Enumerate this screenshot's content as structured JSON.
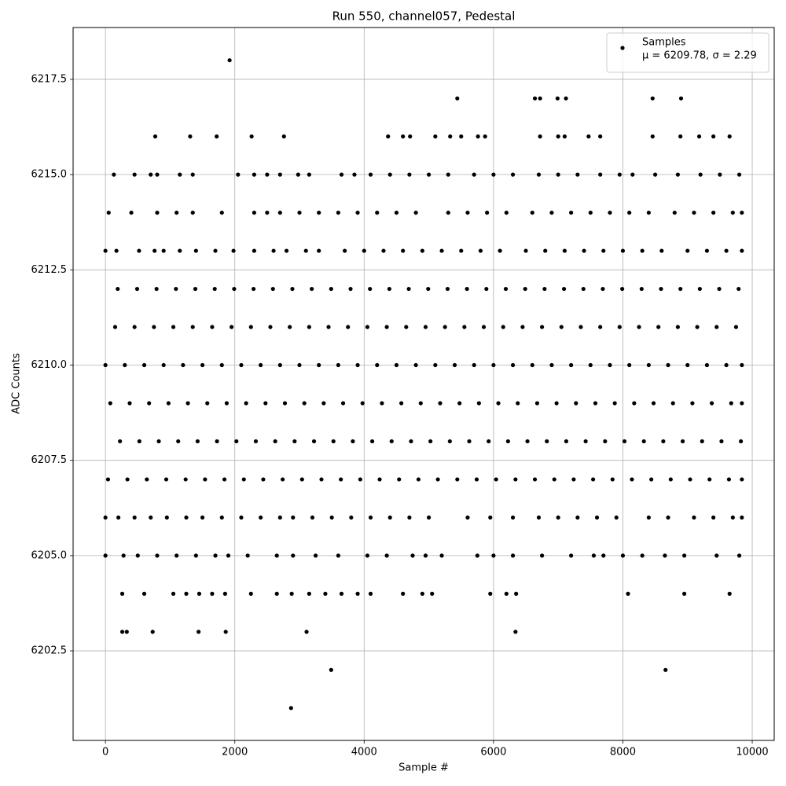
{
  "chart_data": {
    "type": "scatter",
    "title": "Run 550, channel057, Pedestal",
    "x_label": "Sample #",
    "y_label": "ADC Counts",
    "legend_note": "μ = 6209.78, σ = 2.29",
    "legend_position": "upper right",
    "grid": true,
    "xlim": [
      -500,
      10340
    ],
    "ylim": [
      6200.15,
      6218.86
    ],
    "xticks": [
      0,
      2000,
      4000,
      6000,
      8000,
      10000
    ],
    "yticks": [
      6202.5,
      {
        "value": 6205,
        "label": "6205.0"
      },
      6207.5,
      {
        "value": 6210,
        "label": "6210.0"
      },
      6212.5,
      {
        "value": 6215,
        "label": "6215.0"
      },
      6217.5
    ],
    "series": [
      {
        "name": "Samples",
        "color": "#000000",
        "x": [
          0,
          300,
          600,
          900,
          1200,
          1500,
          1800,
          2100,
          2400,
          2700,
          3000,
          3300,
          3600,
          3900,
          4200,
          4500,
          4800,
          5100,
          5400,
          5700,
          6000,
          6300,
          6600,
          6900,
          7200,
          7500,
          7800,
          8100,
          8400,
          8700,
          9000,
          9300,
          9600,
          9840,
          150,
          450,
          750,
          1050,
          1350,
          1650,
          1950,
          2250,
          2550,
          2850,
          3150,
          3450,
          3750,
          4050,
          4350,
          4650,
          4950,
          5250,
          5550,
          5850,
          6150,
          6450,
          6750,
          7050,
          7350,
          7650,
          7950,
          8250,
          8550,
          8850,
          9150,
          9450,
          9750,
          75,
          375,
          675,
          975,
          1275,
          1575,
          1875,
          2175,
          2475,
          2775,
          3075,
          3375,
          3675,
          3975,
          4275,
          4575,
          4875,
          5175,
          5475,
          5775,
          6075,
          6375,
          6675,
          6975,
          7275,
          7575,
          7875,
          8175,
          8475,
          8775,
          9075,
          9375,
          9675,
          9840,
          225,
          525,
          825,
          1125,
          1425,
          1725,
          2025,
          2325,
          2625,
          2925,
          3225,
          3525,
          3825,
          4125,
          4425,
          4725,
          5025,
          5325,
          5625,
          5925,
          6225,
          6525,
          6825,
          7125,
          7425,
          7725,
          8025,
          8325,
          8625,
          8925,
          9225,
          9525,
          9825,
          40,
          340,
          640,
          940,
          1240,
          1540,
          1840,
          2140,
          2440,
          2740,
          3040,
          3340,
          3640,
          3940,
          4240,
          4540,
          4840,
          5140,
          5440,
          5740,
          6040,
          6340,
          6640,
          6940,
          7240,
          7540,
          7840,
          8140,
          8440,
          8740,
          9040,
          9340,
          9640,
          9840,
          190,
          490,
          790,
          1090,
          1390,
          1690,
          1990,
          2290,
          2590,
          2890,
          3190,
          3490,
          3790,
          4090,
          4390,
          4690,
          4990,
          5290,
          5590,
          5890,
          6190,
          6490,
          6790,
          7090,
          7390,
          7690,
          7990,
          8290,
          8590,
          8890,
          9190,
          9490,
          9790,
          0,
          170,
          520,
          760,
          900,
          1150,
          1400,
          1700,
          1980,
          2300,
          2600,
          2800,
          3100,
          3300,
          3700,
          4000,
          4300,
          4600,
          4900,
          5200,
          5500,
          5800,
          6100,
          6500,
          6800,
          7100,
          7400,
          7700,
          8000,
          8300,
          8600,
          9000,
          9300,
          9600,
          9840,
          50,
          400,
          800,
          1100,
          1350,
          1800,
          2300,
          2500,
          2700,
          3000,
          3300,
          3600,
          3900,
          4200,
          4500,
          4800,
          5300,
          5600,
          5900,
          6200,
          6600,
          6900,
          7200,
          7500,
          7800,
          8100,
          8400,
          8800,
          9100,
          9400,
          9700,
          9840,
          0,
          200,
          450,
          700,
          950,
          1250,
          1500,
          1800,
          2100,
          2400,
          2700,
          2900,
          3200,
          3500,
          3800,
          4100,
          4400,
          4700,
          5000,
          5600,
          5950,
          6300,
          6700,
          7000,
          7300,
          7600,
          7900,
          8400,
          8700,
          9100,
          9400,
          9700,
          9840,
          0,
          280,
          500,
          800,
          1100,
          1400,
          1700,
          1900,
          2200,
          2650,
          2900,
          3250,
          3600,
          4050,
          4350,
          4750,
          4950,
          5200,
          5750,
          6000,
          6300,
          6750,
          7200,
          7550,
          7700,
          8000,
          8300,
          8650,
          8950,
          9450,
          9800,
          130,
          450,
          700,
          800,
          1150,
          1350,
          2050,
          2300,
          2500,
          2700,
          2980,
          3150,
          3650,
          3850,
          4100,
          4400,
          4700,
          5000,
          5300,
          5700,
          6000,
          6300,
          6700,
          7000,
          7300,
          7650,
          7950,
          8150,
          8500,
          8850,
          9200,
          9500,
          9800,
          260,
          600,
          1050,
          1250,
          1450,
          1650,
          1850,
          2250,
          2650,
          2880,
          3150,
          3400,
          3650,
          3900,
          4100,
          4600,
          4900,
          5050,
          5950,
          6200,
          6350,
          8080,
          8950,
          9650,
          770,
          1310,
          1720,
          2260,
          2760,
          4370,
          4600,
          4710,
          5100,
          5330,
          5500,
          5760,
          5870,
          6720,
          7000,
          7100,
          7470,
          7650,
          8460,
          8890,
          9180,
          9400,
          9650,
          260,
          330,
          730,
          1440,
          1860,
          3110,
          6340,
          5440,
          6640,
          6720,
          6990,
          7120,
          8460,
          8900,
          1920,
          3490,
          8660,
          2870
        ],
        "values": [
          6210,
          6210,
          6210,
          6210,
          6210,
          6210,
          6210,
          6210,
          6210,
          6210,
          6210,
          6210,
          6210,
          6210,
          6210,
          6210,
          6210,
          6210,
          6210,
          6210,
          6210,
          6210,
          6210,
          6210,
          6210,
          6210,
          6210,
          6210,
          6210,
          6210,
          6210,
          6210,
          6210,
          6210,
          6211,
          6211,
          6211,
          6211,
          6211,
          6211,
          6211,
          6211,
          6211,
          6211,
          6211,
          6211,
          6211,
          6211,
          6211,
          6211,
          6211,
          6211,
          6211,
          6211,
          6211,
          6211,
          6211,
          6211,
          6211,
          6211,
          6211,
          6211,
          6211,
          6211,
          6211,
          6211,
          6211,
          6209,
          6209,
          6209,
          6209,
          6209,
          6209,
          6209,
          6209,
          6209,
          6209,
          6209,
          6209,
          6209,
          6209,
          6209,
          6209,
          6209,
          6209,
          6209,
          6209,
          6209,
          6209,
          6209,
          6209,
          6209,
          6209,
          6209,
          6209,
          6209,
          6209,
          6209,
          6209,
          6209,
          6209,
          6208,
          6208,
          6208,
          6208,
          6208,
          6208,
          6208,
          6208,
          6208,
          6208,
          6208,
          6208,
          6208,
          6208,
          6208,
          6208,
          6208,
          6208,
          6208,
          6208,
          6208,
          6208,
          6208,
          6208,
          6208,
          6208,
          6208,
          6208,
          6208,
          6208,
          6208,
          6208,
          6208,
          6207,
          6207,
          6207,
          6207,
          6207,
          6207,
          6207,
          6207,
          6207,
          6207,
          6207,
          6207,
          6207,
          6207,
          6207,
          6207,
          6207,
          6207,
          6207,
          6207,
          6207,
          6207,
          6207,
          6207,
          6207,
          6207,
          6207,
          6207,
          6207,
          6207,
          6207,
          6207,
          6207,
          6207,
          6212,
          6212,
          6212,
          6212,
          6212,
          6212,
          6212,
          6212,
          6212,
          6212,
          6212,
          6212,
          6212,
          6212,
          6212,
          6212,
          6212,
          6212,
          6212,
          6212,
          6212,
          6212,
          6212,
          6212,
          6212,
          6212,
          6212,
          6212,
          6212,
          6212,
          6212,
          6212,
          6212,
          6213,
          6213,
          6213,
          6213,
          6213,
          6213,
          6213,
          6213,
          6213,
          6213,
          6213,
          6213,
          6213,
          6213,
          6213,
          6213,
          6213,
          6213,
          6213,
          6213,
          6213,
          6213,
          6213,
          6213,
          6213,
          6213,
          6213,
          6213,
          6213,
          6213,
          6213,
          6213,
          6213,
          6213,
          6213,
          6214,
          6214,
          6214,
          6214,
          6214,
          6214,
          6214,
          6214,
          6214,
          6214,
          6214,
          6214,
          6214,
          6214,
          6214,
          6214,
          6214,
          6214,
          6214,
          6214,
          6214,
          6214,
          6214,
          6214,
          6214,
          6214,
          6214,
          6214,
          6214,
          6214,
          6214,
          6214,
          6206,
          6206,
          6206,
          6206,
          6206,
          6206,
          6206,
          6206,
          6206,
          6206,
          6206,
          6206,
          6206,
          6206,
          6206,
          6206,
          6206,
          6206,
          6206,
          6206,
          6206,
          6206,
          6206,
          6206,
          6206,
          6206,
          6206,
          6206,
          6206,
          6206,
          6206,
          6206,
          6206,
          6205,
          6205,
          6205,
          6205,
          6205,
          6205,
          6205,
          6205,
          6205,
          6205,
          6205,
          6205,
          6205,
          6205,
          6205,
          6205,
          6205,
          6205,
          6205,
          6205,
          6205,
          6205,
          6205,
          6205,
          6205,
          6205,
          6205,
          6205,
          6205,
          6205,
          6205,
          6215,
          6215,
          6215,
          6215,
          6215,
          6215,
          6215,
          6215,
          6215,
          6215,
          6215,
          6215,
          6215,
          6215,
          6215,
          6215,
          6215,
          6215,
          6215,
          6215,
          6215,
          6215,
          6215,
          6215,
          6215,
          6215,
          6215,
          6215,
          6215,
          6215,
          6215,
          6215,
          6215,
          6204,
          6204,
          6204,
          6204,
          6204,
          6204,
          6204,
          6204,
          6204,
          6204,
          6204,
          6204,
          6204,
          6204,
          6204,
          6204,
          6204,
          6204,
          6204,
          6204,
          6204,
          6204,
          6204,
          6204,
          6216,
          6216,
          6216,
          6216,
          6216,
          6216,
          6216,
          6216,
          6216,
          6216,
          6216,
          6216,
          6216,
          6216,
          6216,
          6216,
          6216,
          6216,
          6216,
          6216,
          6216,
          6216,
          6216,
          6203,
          6203,
          6203,
          6203,
          6203,
          6203,
          6203,
          6217,
          6217,
          6217,
          6217,
          6217,
          6217,
          6217,
          6218,
          6202,
          6202,
          6201
        ]
      }
    ]
  }
}
